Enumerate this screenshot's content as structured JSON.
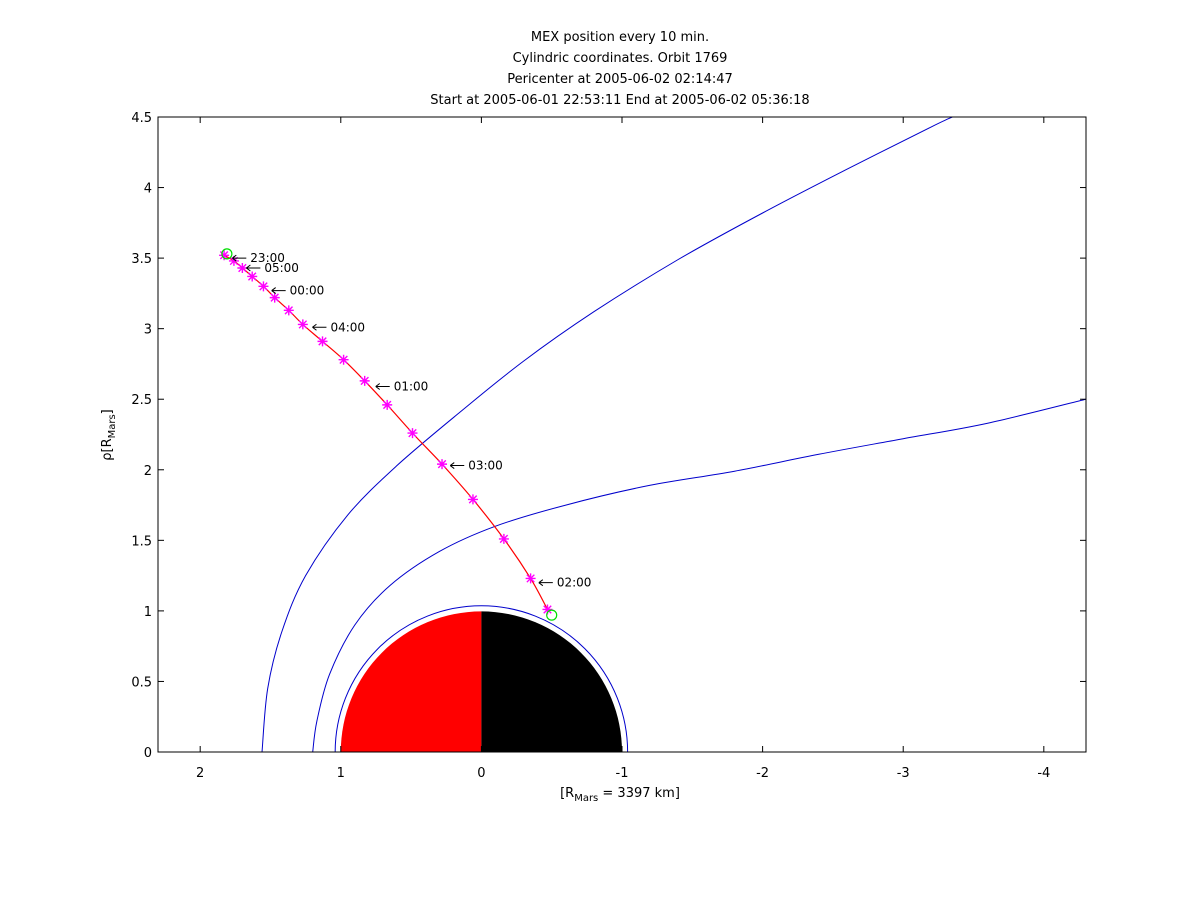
{
  "chart_data": {
    "type": "line",
    "title_lines": [
      "MEX position every 10 min.",
      "Cylindric coordinates. Orbit 1769",
      "Pericenter at 2005-06-02 02:14:47",
      "Start at 2005-06-01 22:53:11 End at 2005-06-02 05:36:18"
    ],
    "xlabel": {
      "pre": "[R",
      "sub": "Mars",
      "post": " = 3397 km]"
    },
    "ylabel": {
      "pre": "ρ[R",
      "sub": "Mars",
      "post": "]"
    },
    "xlim": [
      2.3,
      -4.3
    ],
    "ylim": [
      0,
      4.5
    ],
    "xticks": [
      2,
      1,
      0,
      -1,
      -2,
      -3,
      -4
    ],
    "xtick_labels": [
      "2",
      "1",
      "0",
      "-1",
      "-2",
      "-3",
      "-4"
    ],
    "yticks": [
      0,
      0.5,
      1,
      1.5,
      2,
      2.5,
      3,
      3.5,
      4,
      4.5
    ],
    "ytick_labels": [
      "0",
      "0.5",
      "1",
      "1.5",
      "2",
      "2.5",
      "3",
      "3.5",
      "4",
      "4.5"
    ],
    "colors": {
      "boundary": "#0000cc",
      "orbit": "#ff0000",
      "markers": "#ff00ff",
      "endpoints": "#00dd00",
      "planet_day": "#ff0000",
      "planet_night": "#000000"
    },
    "orbit_points": [
      {
        "x": 1.83,
        "y": 3.52
      },
      {
        "x": 1.76,
        "y": 3.48
      },
      {
        "x": 1.7,
        "y": 3.43
      },
      {
        "x": 1.63,
        "y": 3.37
      },
      {
        "x": 1.55,
        "y": 3.3
      },
      {
        "x": 1.47,
        "y": 3.22
      },
      {
        "x": 1.37,
        "y": 3.13
      },
      {
        "x": 1.27,
        "y": 3.03
      },
      {
        "x": 1.13,
        "y": 2.91
      },
      {
        "x": 0.98,
        "y": 2.78
      },
      {
        "x": 0.83,
        "y": 2.63
      },
      {
        "x": 0.67,
        "y": 2.46
      },
      {
        "x": 0.49,
        "y": 2.26
      },
      {
        "x": 0.28,
        "y": 2.04
      },
      {
        "x": 0.06,
        "y": 1.79
      },
      {
        "x": -0.16,
        "y": 1.51
      },
      {
        "x": -0.35,
        "y": 1.23
      },
      {
        "x": -0.47,
        "y": 1.01
      }
    ],
    "endpoints": [
      {
        "x": 1.81,
        "y": 3.53
      },
      {
        "x": -0.5,
        "y": 0.97
      }
    ],
    "time_labels": [
      {
        "text": "23:00",
        "x": 1.8,
        "y": 3.5
      },
      {
        "text": "05:00",
        "x": 1.7,
        "y": 3.43
      },
      {
        "text": "00:00",
        "x": 1.52,
        "y": 3.27
      },
      {
        "text": "04:00",
        "x": 1.23,
        "y": 3.01
      },
      {
        "text": "01:00",
        "x": 0.78,
        "y": 2.59
      },
      {
        "text": "03:00",
        "x": 0.25,
        "y": 2.03
      },
      {
        "text": "02:00",
        "x": -0.38,
        "y": 1.2
      }
    ],
    "planet": {
      "radius": 1.0,
      "boundary_radius": 1.04
    },
    "bow_shock": [
      {
        "x": 1.56,
        "y": 0
      },
      {
        "x": 1.52,
        "y": 0.45
      },
      {
        "x": 1.42,
        "y": 0.85
      },
      {
        "x": 1.25,
        "y": 1.25
      },
      {
        "x": 0.95,
        "y": 1.68
      },
      {
        "x": 0.6,
        "y": 2.03
      },
      {
        "x": 0.15,
        "y": 2.41
      },
      {
        "x": -0.3,
        "y": 2.77
      },
      {
        "x": -0.8,
        "y": 3.12
      },
      {
        "x": -1.4,
        "y": 3.49
      },
      {
        "x": -2.0,
        "y": 3.82
      },
      {
        "x": -2.6,
        "y": 4.13
      },
      {
        "x": -3.2,
        "y": 4.43
      },
      {
        "x": -3.35,
        "y": 4.5
      }
    ],
    "mpb": [
      {
        "x": 1.2,
        "y": 0
      },
      {
        "x": 1.17,
        "y": 0.22
      },
      {
        "x": 1.08,
        "y": 0.55
      },
      {
        "x": 0.9,
        "y": 0.9
      },
      {
        "x": 0.65,
        "y": 1.18
      },
      {
        "x": 0.3,
        "y": 1.42
      },
      {
        "x": -0.1,
        "y": 1.6
      },
      {
        "x": -0.6,
        "y": 1.75
      },
      {
        "x": -1.2,
        "y": 1.89
      },
      {
        "x": -1.8,
        "y": 1.99
      },
      {
        "x": -2.4,
        "y": 2.11
      },
      {
        "x": -3.0,
        "y": 2.22
      },
      {
        "x": -3.6,
        "y": 2.33
      },
      {
        "x": -4.3,
        "y": 2.5
      }
    ]
  }
}
